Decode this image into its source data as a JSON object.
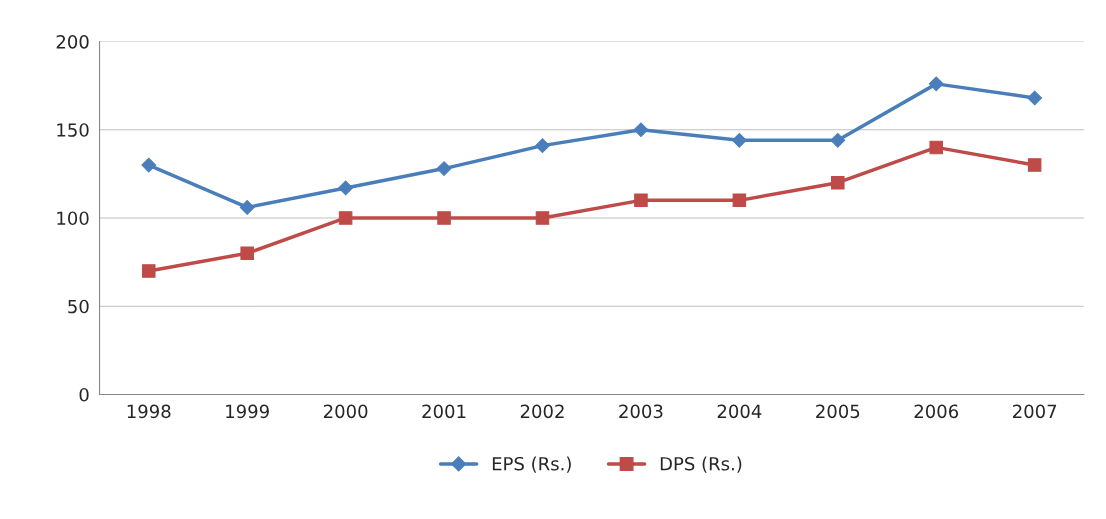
{
  "chart_data": {
    "type": "line",
    "categories": [
      "1998",
      "1999",
      "2000",
      "2001",
      "2002",
      "2003",
      "2004",
      "2005",
      "2006",
      "2007"
    ],
    "series": [
      {
        "name": "EPS (Rs.)",
        "color": "#4a7ebb",
        "marker": "diamond",
        "values": [
          130,
          106,
          117,
          128,
          141,
          150,
          144,
          144,
          176,
          168
        ]
      },
      {
        "name": "DPS (Rs.)",
        "color": "#be4b48",
        "marker": "square",
        "values": [
          70,
          80,
          100,
          100,
          100,
          110,
          110,
          120,
          140,
          130
        ]
      }
    ],
    "ylim": [
      0,
      200
    ],
    "yticks": [
      0,
      50,
      100,
      150,
      200
    ],
    "grid": "y",
    "legend": "bottom",
    "line_style": "solid"
  }
}
